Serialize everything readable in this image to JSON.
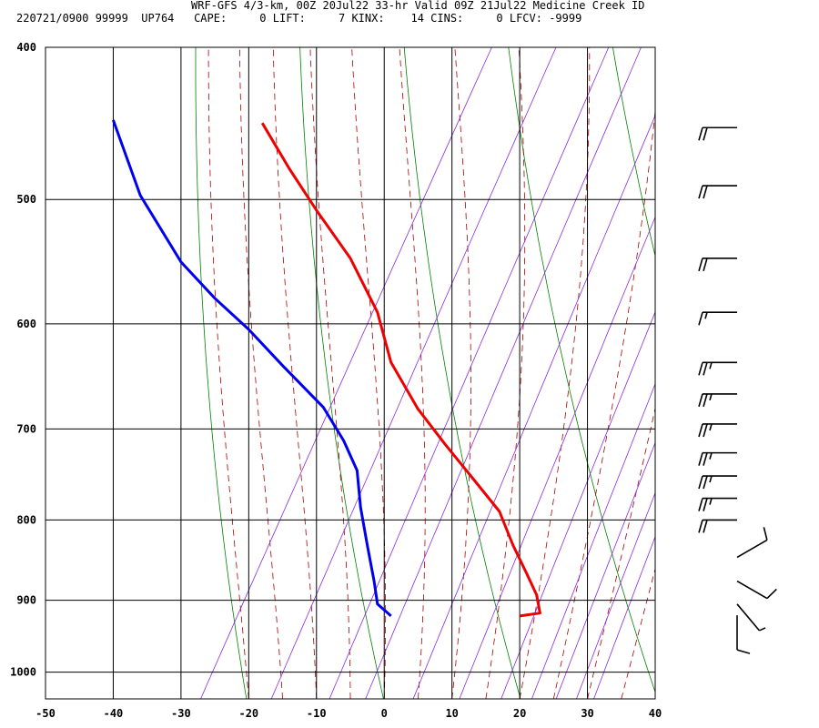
{
  "header": {
    "line1": "WRF-GFS 4/3-km, 00Z 20Jul22 33-hr Valid 09Z 21Jul22 Medicine Creek ID",
    "line2": "220721/0900 99999  UP764   CAPE:     0 LIFT:     7 KINX:    14 CINS:     0 LFCV: -9999"
  },
  "chart_data": {
    "type": "line",
    "title": "WRF-GFS 4/3-km, 00Z 20Jul22 33-hr Valid 09Z 21Jul22 Medicine Creek ID",
    "xlabel": "",
    "ylabel": "",
    "x_ticks": [
      -50,
      -40,
      -30,
      -20,
      -10,
      0,
      10,
      20,
      30,
      40
    ],
    "y_ticks": [
      400,
      500,
      600,
      700,
      800,
      900,
      1000
    ],
    "xlim": [
      -50,
      40
    ],
    "ylim": [
      400,
      1040
    ],
    "y_scale": "log-pressure",
    "grid": true,
    "colors": {
      "temperature": "#ee0000",
      "dewpoint": "#0000ee",
      "dry_adiabat": "#008000",
      "moist_adiabat": "#aa0000",
      "mixing_ratio": "#8a2be2",
      "grid": "#000000",
      "barb": "#000000"
    },
    "series": [
      {
        "key": "temperature",
        "points": [
          [
            -18,
            447
          ],
          [
            -14,
            478
          ],
          [
            -10,
            508
          ],
          [
            -5,
            545
          ],
          [
            -1,
            590
          ],
          [
            1,
            635
          ],
          [
            5,
            680
          ],
          [
            9,
            716
          ],
          [
            13,
            752
          ],
          [
            17,
            790
          ],
          [
            19,
            830
          ],
          [
            21,
            865
          ],
          [
            22.5,
            893
          ],
          [
            23,
            917
          ],
          [
            20,
            921
          ]
        ]
      },
      {
        "key": "dewpoint",
        "points": [
          [
            -40,
            445
          ],
          [
            -36,
            497
          ],
          [
            -30,
            548
          ],
          [
            -25,
            578
          ],
          [
            -20,
            605
          ],
          [
            -15,
            638
          ],
          [
            -9,
            678
          ],
          [
            -6,
            712
          ],
          [
            -4,
            744
          ],
          [
            -3.5,
            785
          ],
          [
            -2.5,
            830
          ],
          [
            -1.5,
            875
          ],
          [
            -1,
            905
          ],
          [
            1,
            921
          ]
        ]
      }
    ],
    "wind_barbs": [
      {
        "p": 450,
        "speed": 20,
        "dir": 0
      },
      {
        "p": 490,
        "speed": 20,
        "dir": 0
      },
      {
        "p": 545,
        "speed": 20,
        "dir": 0
      },
      {
        "p": 590,
        "speed": 15,
        "dir": 0
      },
      {
        "p": 635,
        "speed": 25,
        "dir": 0
      },
      {
        "p": 665,
        "speed": 25,
        "dir": 0
      },
      {
        "p": 695,
        "speed": 25,
        "dir": 0
      },
      {
        "p": 725,
        "speed": 25,
        "dir": 0
      },
      {
        "p": 750,
        "speed": 25,
        "dir": 0
      },
      {
        "p": 775,
        "speed": 25,
        "dir": 0
      },
      {
        "p": 800,
        "speed": 20,
        "dir": 0
      },
      {
        "p": 845,
        "speed": 10,
        "dir": 300
      },
      {
        "p": 875,
        "speed": 10,
        "dir": 240
      },
      {
        "p": 905,
        "speed": 5,
        "dir": 220
      },
      {
        "p": 920,
        "speed": 10,
        "dir": 180
      }
    ]
  }
}
